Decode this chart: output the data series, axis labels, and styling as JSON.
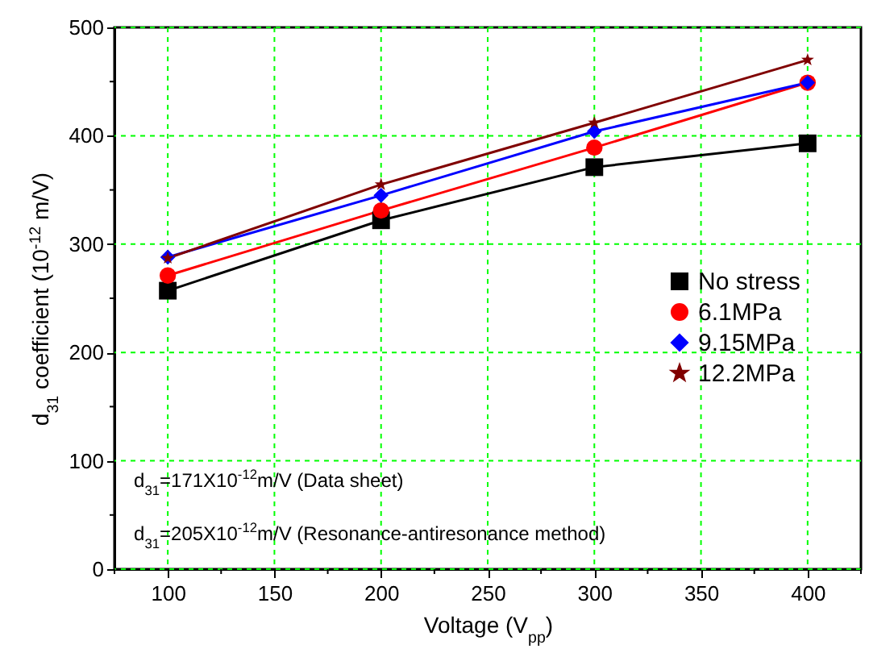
{
  "chart_data": {
    "type": "line",
    "xlabel": "Voltage (V$_{pp}$)",
    "ylabel": "d$_{31}$ coefficient (10$^{-12}$ m/V)",
    "x": [
      100,
      200,
      300,
      400
    ],
    "series": [
      {
        "name": "No stress",
        "color": "#000000",
        "marker": "square",
        "values": [
          257,
          322,
          371,
          393
        ]
      },
      {
        "name": "6.1MPa",
        "color": "#ff0000",
        "marker": "circle",
        "values": [
          271,
          331,
          389,
          449
        ]
      },
      {
        "name": "9.15MPa",
        "color": "#0000ff",
        "marker": "diamond",
        "values": [
          288,
          345,
          404,
          449
        ]
      },
      {
        "name": "12.2MPa",
        "color": "#800000",
        "marker": "star",
        "values": [
          287,
          355,
          412,
          470
        ]
      }
    ],
    "xlim": [
      75,
      425
    ],
    "xticks": [
      {
        "value": 75,
        "label": null
      },
      100,
      {
        "value": 125,
        "label": null
      },
      150,
      {
        "value": 175,
        "label": null
      },
      200,
      {
        "value": 225,
        "label": null
      },
      250,
      {
        "value": 275,
        "label": null
      },
      300,
      {
        "value": 325,
        "label": null
      },
      350,
      {
        "value": 375,
        "label": null
      },
      400,
      {
        "value": 425,
        "label": null
      }
    ],
    "ylim": [
      0,
      500
    ],
    "yticks": [
      0,
      {
        "value": 50,
        "label": null
      },
      100,
      {
        "value": 150,
        "label": null
      },
      200,
      {
        "value": 250,
        "label": null
      },
      300,
      {
        "value": 350,
        "label": null
      },
      400,
      {
        "value": 450,
        "label": null
      },
      500
    ],
    "grid": true,
    "legend": "right",
    "annotations": [
      "d$_{31}$=171X10$^{-12}$m/V (Data sheet)",
      "d$_{31}$=205X10$^{-12}$m/V (Resonance-antiresonance method)"
    ]
  }
}
